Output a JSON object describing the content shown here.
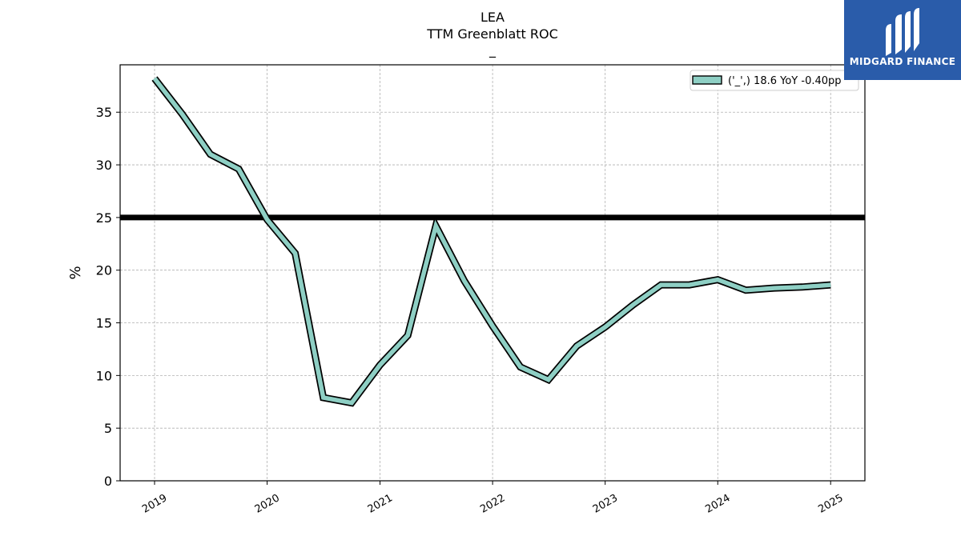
{
  "chart_data": {
    "type": "line",
    "title": "LEA",
    "subtitle": "TTM Greenblatt ROC",
    "subtitle2": "_",
    "xlabel": "",
    "ylabel": "%",
    "ylim": [
      0,
      39.5
    ],
    "yticks": [
      0,
      5,
      10,
      15,
      20,
      25,
      30,
      35
    ],
    "xticks": [
      "2019",
      "2020",
      "2021",
      "2022",
      "2023",
      "2024",
      "2025"
    ],
    "grid": true,
    "legend_position": "top-right",
    "reference_line": 25,
    "series": [
      {
        "name": "('_',) 18.6 YoY -0.40pp",
        "color": "#8ecfc4",
        "x": [
          "2019-01-01",
          "2019-04-01",
          "2019-07-01",
          "2019-10-01",
          "2020-01-01",
          "2020-04-01",
          "2020-07-01",
          "2020-10-01",
          "2021-01-01",
          "2021-04-01",
          "2021-07-01",
          "2021-10-01",
          "2022-01-01",
          "2022-04-01",
          "2022-07-01",
          "2022-10-01",
          "2023-01-01",
          "2023-04-01",
          "2023-07-01",
          "2023-10-01",
          "2024-01-01",
          "2024-04-01",
          "2024-07-01",
          "2024-10-01",
          "2025-01-01"
        ],
        "values": [
          38.2,
          34.8,
          31.0,
          29.6,
          24.8,
          21.6,
          7.9,
          7.4,
          11.0,
          13.8,
          24.2,
          19.0,
          14.7,
          10.8,
          9.6,
          12.8,
          14.6,
          16.7,
          18.6,
          18.6,
          19.1,
          18.1,
          18.3,
          18.4,
          18.6
        ]
      }
    ]
  },
  "brand": {
    "name": "MIDGARD FINANCE",
    "color": "#2a5caa"
  }
}
